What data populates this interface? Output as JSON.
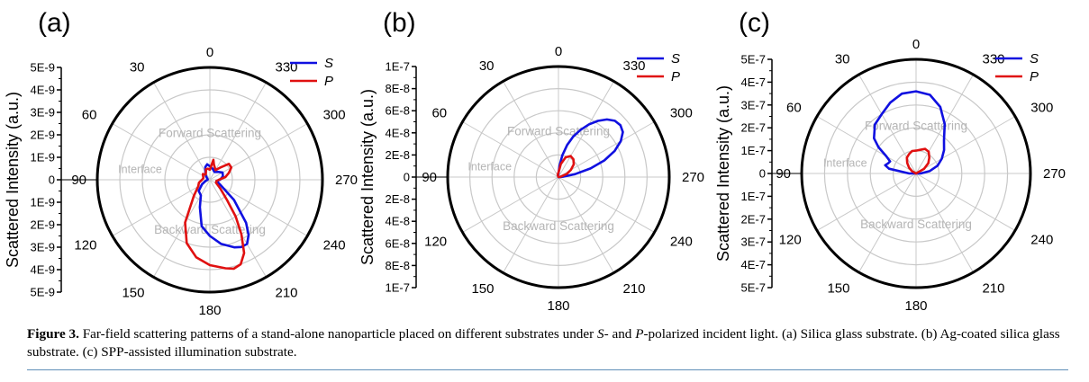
{
  "figure": {
    "label": "Figure 3.",
    "caption_parts": [
      {
        "text": " Far-field scattering patterns of a stand-alone nanoparticle placed on different substrates under ",
        "italic": false
      },
      {
        "text": "S",
        "italic": true
      },
      {
        "text": "- and ",
        "italic": false
      },
      {
        "text": "P",
        "italic": true
      },
      {
        "text": "-polarized incident light. (a) Silica glass substrate. (b) Ag-coated silica glass substrate. (c) SPP-assisted illumination substrate.",
        "italic": false
      }
    ],
    "rule_color": "#5f8fb8"
  },
  "chart_data": [
    {
      "type": "polar-line",
      "panel_label": "(a)",
      "ylabel": "Scattered Intensity (a.u.)",
      "radial_max": 5e-09,
      "radial_ticks": [
        "5E-9",
        "4E-9",
        "3E-9",
        "2E-9",
        "1E-9",
        "0",
        "1E-9",
        "2E-9",
        "3E-9",
        "4E-9",
        "5E-9"
      ],
      "angle_ticks": [
        "0",
        "30",
        "60",
        "90",
        "120",
        "150",
        "180",
        "210",
        "240",
        "270",
        "300",
        "330"
      ],
      "region_labels": {
        "forward": "Forward Scattering",
        "interface": "Interface",
        "backward": "Backward Scattering"
      },
      "grid": true,
      "legend": {
        "position": "top-right",
        "items": [
          "S",
          "P"
        ]
      },
      "series": [
        {
          "name": "S",
          "color": "#1010e0",
          "theta": [
            0,
            10,
            20,
            30,
            45,
            60,
            75,
            90,
            105,
            120,
            135,
            150,
            160,
            170,
            180,
            190,
            200,
            205,
            210,
            215,
            220,
            230,
            245,
            260,
            270,
            285,
            300,
            315,
            330,
            345,
            360
          ],
          "r": [
            6e-10,
            7e-10,
            6e-10,
            4e-10,
            2.5e-10,
            1.5e-10,
            1e-10,
            1e-10,
            2e-10,
            4e-10,
            7e-10,
            8e-10,
            1.3e-09,
            2.1e-09,
            2.5e-09,
            2.9e-09,
            3.2e-09,
            3.3e-09,
            3.3e-09,
            3e-09,
            2.5e-09,
            1.4e-09,
            5e-10,
            3e-10,
            4.5e-10,
            6e-10,
            6.5e-10,
            5e-10,
            4e-10,
            5e-10,
            6e-10
          ]
        },
        {
          "name": "P",
          "color": "#e01010",
          "theta": [
            0,
            10,
            20,
            30,
            40,
            50,
            60,
            75,
            90,
            105,
            120,
            135,
            150,
            160,
            170,
            180,
            190,
            195,
            200,
            205,
            210,
            215,
            220,
            230,
            245,
            260,
            270,
            280,
            290,
            300,
            310,
            320,
            330,
            345,
            350,
            360
          ],
          "r": [
            4.5e-10,
            5e-10,
            5e-10,
            3.5e-10,
            3e-10,
            4e-10,
            3.5e-10,
            3e-10,
            3.5e-10,
            5e-10,
            6e-10,
            1e-09,
            2.2e-09,
            3e-09,
            3.5e-09,
            3.8e-09,
            4e-09,
            4.1e-09,
            4e-09,
            3.6e-09,
            2.8e-09,
            2e-09,
            1.2e-09,
            6e-10,
            3e-10,
            3e-10,
            4e-10,
            7e-10,
            9e-10,
            1.1e-09,
            1.1e-09,
            7e-10,
            5e-10,
            7e-10,
            9e-10,
            4.5e-10
          ]
        }
      ]
    },
    {
      "type": "polar-line",
      "panel_label": "(b)",
      "ylabel": "Scattered Intensity (a.u.)",
      "radial_max": 1e-07,
      "radial_ticks": [
        "1E-7",
        "8E-8",
        "6E-8",
        "4E-8",
        "2E-8",
        "0",
        "2E-8",
        "4E-8",
        "6E-8",
        "8E-8",
        "1E-7"
      ],
      "angle_ticks": [
        "0",
        "30",
        "60",
        "90",
        "120",
        "150",
        "180",
        "210",
        "240",
        "270",
        "300",
        "330"
      ],
      "region_labels": {
        "forward": "Forward Scattering",
        "interface": "Interface",
        "backward": "Backward Scattering"
      },
      "grid": true,
      "legend": {
        "position": "top-right",
        "items": [
          "S",
          "P"
        ]
      },
      "series": [
        {
          "name": "S",
          "color": "#1010e0",
          "theta": [
            0,
            10,
            20,
            30,
            60,
            90,
            180,
            260,
            265,
            270,
            275,
            280,
            285,
            290,
            295,
            300,
            305,
            310,
            315,
            320,
            325,
            330,
            335,
            340,
            345,
            350,
            355,
            360
          ],
          "r": [
            3e-09,
            2e-09,
            1e-09,
            0,
            0,
            0,
            0,
            0,
            8e-10,
            1.2e-09,
            4e-09,
            1.5e-08,
            3e-08,
            4.4e-08,
            5.6e-08,
            6.5e-08,
            7.1e-08,
            7.3e-08,
            7.2e-08,
            6.8e-08,
            6.2e-08,
            5.5e-08,
            4.7e-08,
            3.9e-08,
            3e-08,
            2e-08,
            1e-08,
            3e-09
          ]
        },
        {
          "name": "P",
          "color": "#e01010",
          "theta": [
            0,
            10,
            20,
            30,
            60,
            90,
            180,
            270,
            280,
            290,
            300,
            310,
            320,
            330,
            340,
            350,
            360
          ],
          "r": [
            4e-09,
            3e-09,
            2e-09,
            0,
            0,
            0,
            0,
            0,
            2e-09,
            8e-09,
            1.3e-08,
            1.8e-08,
            2.1e-08,
            2.2e-08,
            1.9e-08,
            1.2e-08,
            4e-09
          ]
        }
      ]
    },
    {
      "type": "polar-line",
      "panel_label": "(c)",
      "ylabel": "Scattered Intensity (a.u.)",
      "radial_max": 5e-07,
      "radial_ticks": [
        "5E-7",
        "4E-7",
        "3E-7",
        "2E-7",
        "1E-7",
        "0",
        "1E-7",
        "2E-7",
        "3E-7",
        "4E-7",
        "5E-7"
      ],
      "angle_ticks": [
        "0",
        "30",
        "60",
        "90",
        "120",
        "150",
        "180",
        "210",
        "240",
        "270",
        "300",
        "330"
      ],
      "region_labels": {
        "forward": "Forward Scattering",
        "interface": "Interface",
        "backward": "Backward Scattering"
      },
      "grid": true,
      "legend": {
        "position": "top-right",
        "items": [
          "S",
          "P"
        ]
      },
      "series": [
        {
          "name": "S",
          "color": "#1010e0",
          "theta": [
            0,
            10,
            20,
            30,
            40,
            50,
            55,
            60,
            65,
            70,
            75,
            80,
            90,
            120,
            180,
            240,
            270,
            280,
            290,
            300,
            310,
            320,
            330,
            340,
            350,
            360
          ],
          "r": [
            3.6e-07,
            3.55e-07,
            3.3e-07,
            3e-07,
            2.8e-07,
            2.4e-07,
            2e-07,
            1.5e-07,
            1.25e-07,
            1.3e-07,
            1.4e-07,
            1.2e-07,
            3e-08,
            0,
            0,
            0,
            2e-08,
            6e-08,
            1e-07,
            1.3e-07,
            1.6e-07,
            1.9e-07,
            2.5e-07,
            3.1e-07,
            3.5e-07,
            3.6e-07
          ]
        },
        {
          "name": "P",
          "color": "#e01010",
          "theta": [
            0,
            10,
            20,
            30,
            40,
            50,
            60,
            90,
            180,
            270,
            300,
            310,
            320,
            330,
            340,
            350,
            360
          ],
          "r": [
            1e-07,
            1e-07,
            9e-08,
            8e-08,
            6e-08,
            4e-08,
            2e-08,
            0,
            0,
            0,
            4e-08,
            7e-08,
            9e-08,
            1.1e-07,
            1.15e-07,
            1.05e-07,
            1e-07
          ]
        }
      ]
    }
  ]
}
